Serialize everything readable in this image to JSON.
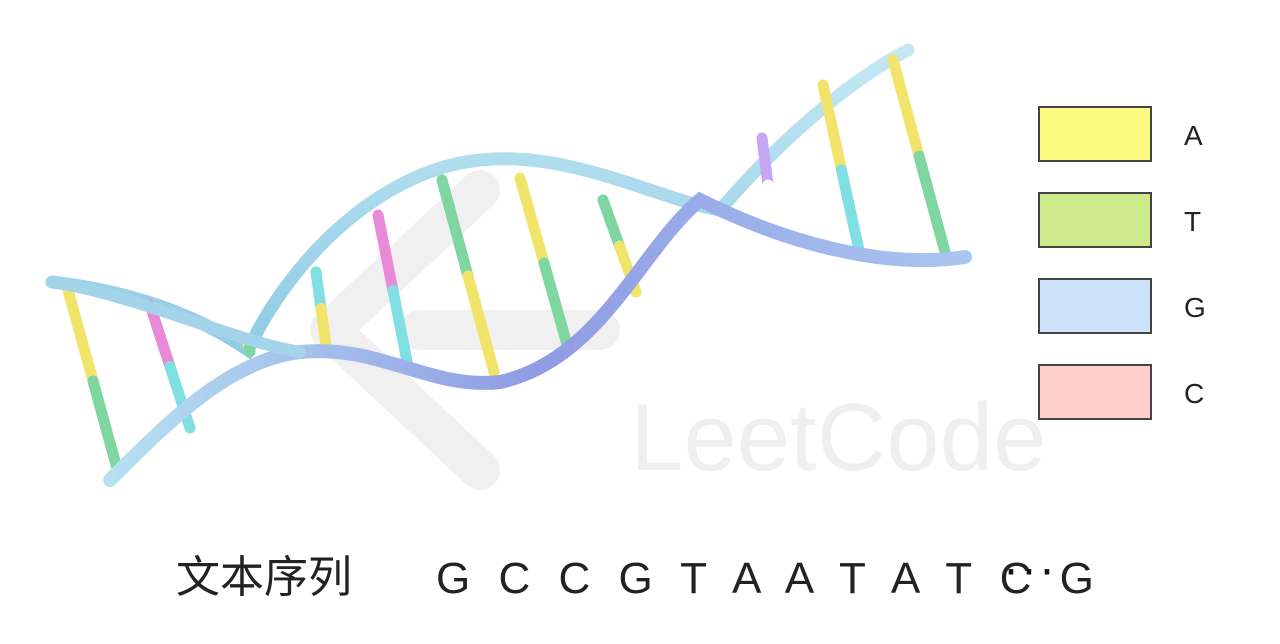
{
  "legend": [
    {
      "label": "A",
      "color": "#fefb82"
    },
    {
      "label": "T",
      "color": "#cdeb8b"
    },
    {
      "label": "G",
      "color": "#cde3fb"
    },
    {
      "label": "C",
      "color": "#fecfcc"
    }
  ],
  "caption": {
    "label": "文本序列",
    "sequence": "G C C G T A A T A T C G",
    "ellipsis": "···"
  },
  "watermark": "LeetCode",
  "strand_colors": {
    "outer": "#a9d8ec",
    "inner": "#8f9be3"
  },
  "base_pair_colors": [
    "#f2e46a",
    "#7fd6a0",
    "#80dfe2",
    "#e98ad9",
    "#c6a5f2",
    "#ffffff"
  ]
}
